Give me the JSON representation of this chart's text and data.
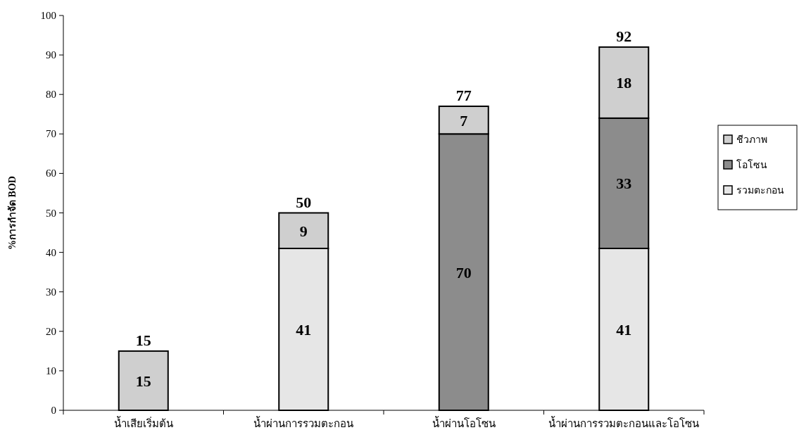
{
  "chart_data": {
    "type": "bar",
    "stacked": true,
    "ylabel": "%การกำจัด BOD",
    "categories": [
      "น้ำเสียเริ่มต้น",
      "น้ำผ่านการรวมตะกอน",
      "น้ำผ่านโอโซน",
      "น้ำผ่านการรวมตะกอนและโอโซน"
    ],
    "series": [
      {
        "name": "รวมตะกอน",
        "color": "#e6e6e6",
        "values": [
          null,
          41,
          null,
          41
        ]
      },
      {
        "name": "โอโซน",
        "color": "#8c8c8c",
        "values": [
          null,
          null,
          70,
          33
        ]
      },
      {
        "name": "ชีวภาพ",
        "color": "#cfcfcf",
        "values": [
          15,
          9,
          7,
          18
        ]
      }
    ],
    "totals": [
      "15",
      "50",
      "77",
      "92"
    ],
    "data_labels": true,
    "ylim": [
      0,
      100
    ],
    "yticks": [
      0,
      10,
      20,
      30,
      40,
      50,
      60,
      70,
      80,
      90,
      100
    ],
    "grid": false,
    "legend": "right"
  }
}
